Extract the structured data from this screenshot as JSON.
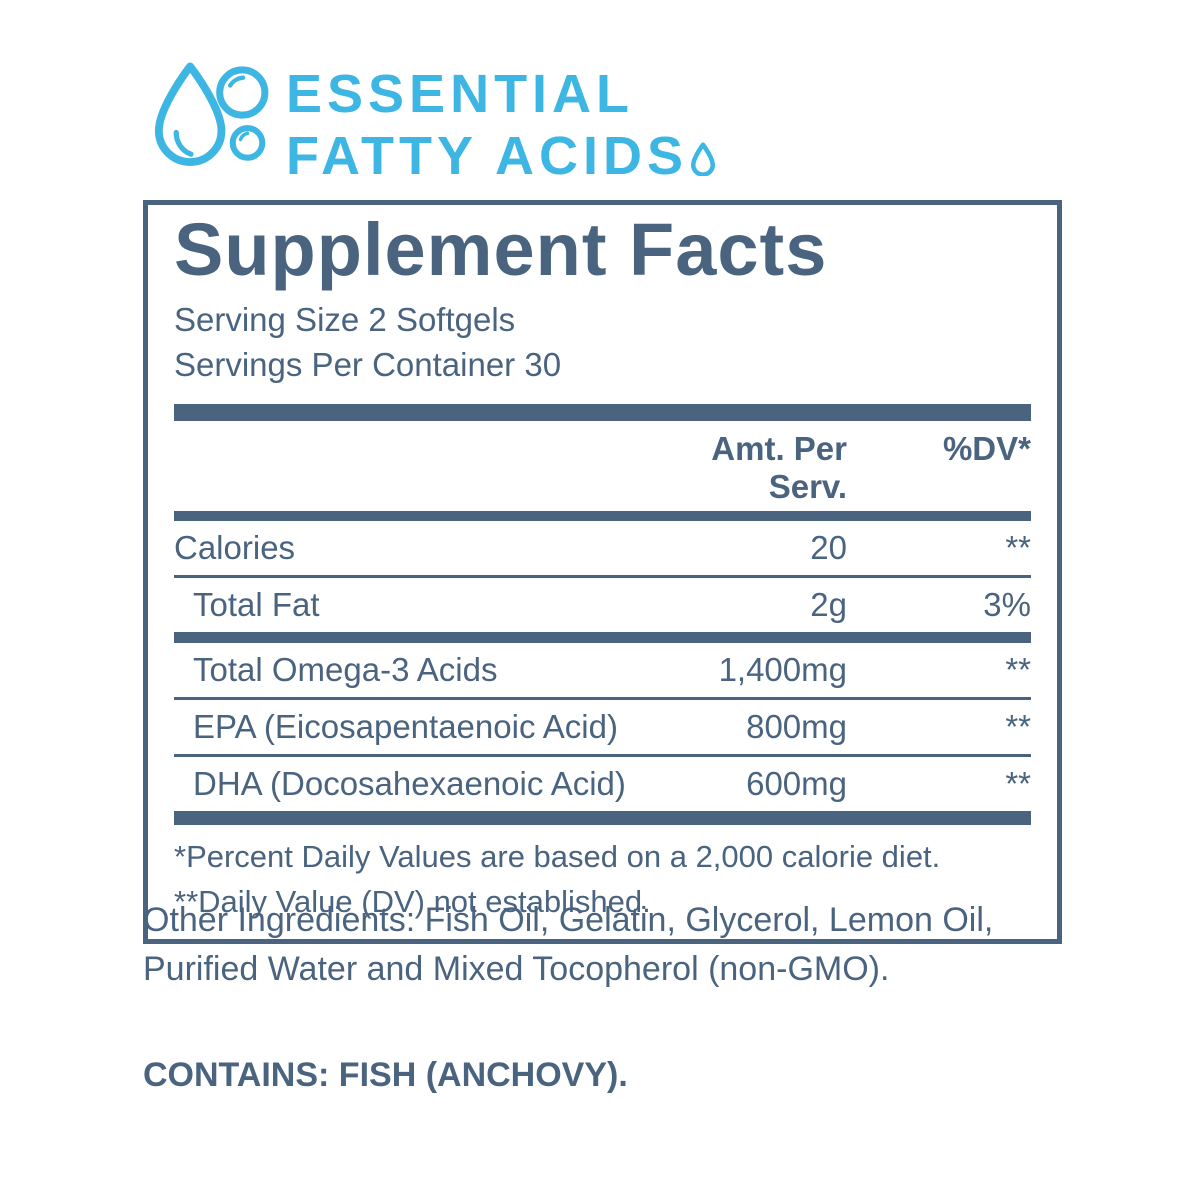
{
  "brand": {
    "title_line1": "ESSENTIAL",
    "title_line2": "FATTY ACIDS",
    "accent_color": "#3db6e3",
    "icon": "water-drop-with-bubbles"
  },
  "panel": {
    "title": "Supplement Facts",
    "serving_size": "Serving Size 2 Softgels",
    "servings_per_container": "Servings Per Container 30",
    "text_color": "#4a6480",
    "columns": {
      "amount": "Amt. Per Serv.",
      "dv": "%DV*"
    },
    "rows": [
      {
        "name": "Calories",
        "amount": "20",
        "dv": "**",
        "indent": false,
        "sep_after": "sep-thin"
      },
      {
        "name": "Total Fat",
        "amount": "2g",
        "dv": "3%",
        "indent": true,
        "sep_after": "sep-thick"
      },
      {
        "name": "Total Omega-3 Acids",
        "amount": "1,400mg",
        "dv": "**",
        "indent": true,
        "sep_after": "sep-thin"
      },
      {
        "name": "EPA (Eicosapentaenoic Acid)",
        "amount": "800mg",
        "dv": "**",
        "indent": true,
        "sep_after": "sep-thin"
      },
      {
        "name": "DHA (Docosahexaenoic Acid)",
        "amount": "600mg",
        "dv": "**",
        "indent": true,
        "sep_after": "sep-xthick"
      }
    ],
    "footnotes": [
      "*Percent Daily Values are based on a 2,000 calorie diet.",
      "**Daily Value (DV) not established."
    ]
  },
  "other_ingredients": "Other Ingredients: Fish Oil, Gelatin, Glycerol, Lemon Oil, Purified Water and Mixed Tocopherol (non-GMO).",
  "contains": "CONTAINS: FISH (ANCHOVY)."
}
